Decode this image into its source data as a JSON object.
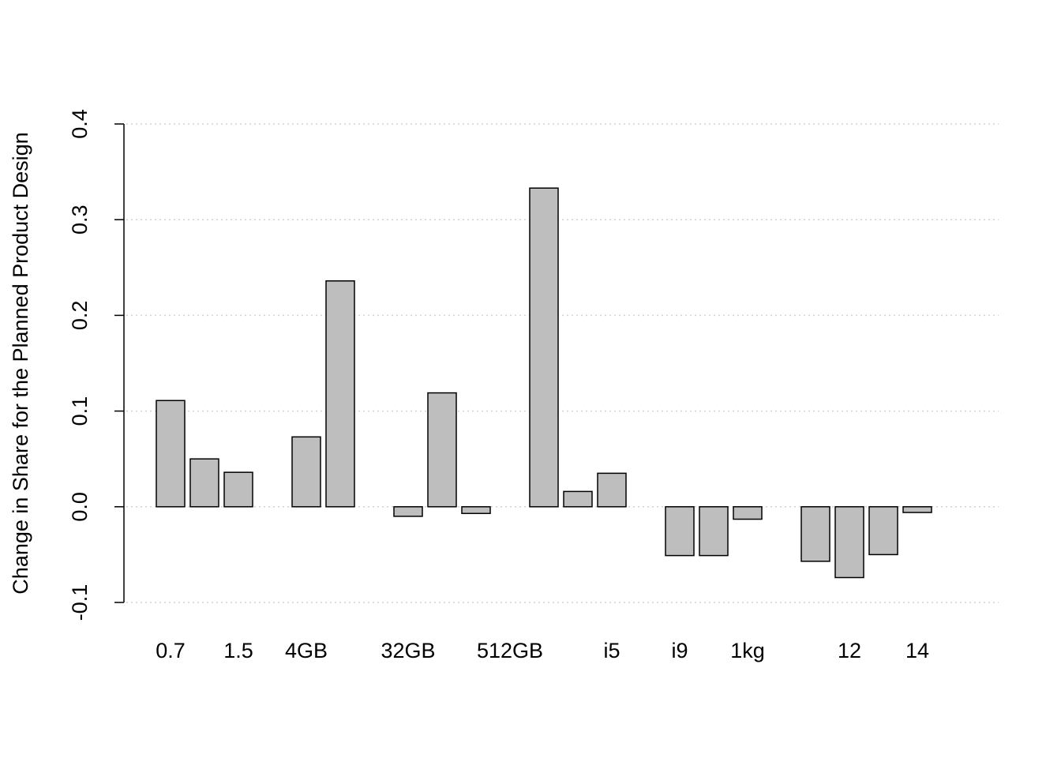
{
  "chart_data": {
    "type": "bar",
    "y_label": "Change in Share for the Planned Product Design",
    "categories": [
      "0.7",
      null,
      "1.5",
      null,
      "4GB",
      null,
      null,
      "32GB",
      null,
      null,
      "512GB",
      null,
      null,
      "i5",
      null,
      "i9",
      null,
      "1kg",
      null,
      null,
      "12",
      null,
      "14",
      null
    ],
    "values": [
      0.111,
      0.05,
      0.036,
      0,
      0.073,
      0.236,
      0,
      -0.01,
      0.119,
      -0.007,
      0,
      0.333,
      0.016,
      0.035,
      0,
      -0.051,
      -0.051,
      -0.013,
      0,
      -0.057,
      -0.074,
      -0.05,
      -0.006,
      0
    ],
    "color": "#bebebe",
    "ylim": [
      -0.1,
      0.4
    ],
    "yticks": [
      -0.1,
      {
        "value": 0,
        "label": "0.0"
      },
      0.1,
      0.2,
      0.3,
      0.4
    ],
    "grid": true
  }
}
